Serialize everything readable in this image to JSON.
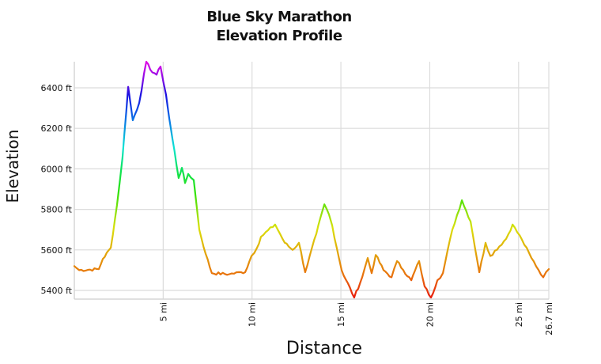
{
  "chart": {
    "title_line1": "Blue Sky Marathon",
    "title_line2": "Elevation Profile",
    "xlabel": "Distance",
    "ylabel": "Elevation",
    "y_ticks": [
      "6400 ft",
      "6200 ft",
      "6000 ft",
      "5800 ft",
      "5600 ft",
      "5400 ft"
    ],
    "x_ticks": [
      "5 mi",
      "10 mi",
      "15 mi",
      "20 mi",
      "25 mi",
      "26.7 mi"
    ]
  },
  "chart_data": {
    "type": "line",
    "title": "Blue Sky Marathon Elevation Profile",
    "xlabel": "Distance",
    "ylabel": "Elevation",
    "x_unit": "mi",
    "y_unit": "ft",
    "xlim": [
      0,
      26.7
    ],
    "ylim": [
      5355,
      6530
    ],
    "x_tick_values": [
      5,
      10,
      15,
      20,
      25,
      26.7
    ],
    "x_tick_labels": [
      "5 mi",
      "10 mi",
      "15 mi",
      "20 mi",
      "25 mi",
      "26.7 mi"
    ],
    "y_tick_values": [
      5400,
      5600,
      5800,
      6000,
      6200,
      6400
    ],
    "y_tick_labels": [
      "5400 ft",
      "5600 ft",
      "5800 ft",
      "6000 ft",
      "6200 ft",
      "6400 ft"
    ],
    "grid": true,
    "legend": "none",
    "color_scale": "elevation-gradient: red (low) → orange → yellow → green → cyan → blue → magenta (high)",
    "series": [
      {
        "name": "Elevation",
        "x": [
          0,
          0.27,
          1.38,
          1.6,
          2.05,
          2.4,
          2.71,
          3.03,
          3.29,
          3.65,
          4.05,
          4.27,
          4.63,
          4.85,
          5.16,
          5.34,
          5.52,
          5.87,
          6.05,
          6.23,
          6.41,
          6.72,
          7.03,
          7.39,
          7.74,
          8.72,
          9.39,
          9.61,
          9.97,
          10.28,
          10.5,
          11.3,
          11.84,
          12.28,
          12.64,
          12.99,
          13.62,
          14.07,
          14.33,
          14.51,
          15.04,
          15.75,
          16.2,
          16.51,
          16.73,
          16.96,
          17.4,
          17.85,
          18.16,
          18.51,
          18.96,
          19.4,
          19.71,
          20.07,
          20.43,
          20.74,
          21.27,
          21.81,
          22.3,
          22.79,
          23.14,
          23.41,
          24.3,
          24.66,
          25.19,
          25.72,
          26.39,
          26.7
        ],
        "y": [
          5520,
          5500,
          5505,
          5555,
          5610,
          5820,
          6055,
          6405,
          6240,
          6325,
          6530,
          6490,
          6465,
          6505,
          6365,
          6250,
          6150,
          5955,
          6005,
          5930,
          5975,
          5945,
          5700,
          5580,
          5485,
          5480,
          5490,
          5490,
          5570,
          5610,
          5665,
          5725,
          5635,
          5600,
          5635,
          5490,
          5680,
          5825,
          5775,
          5720,
          5500,
          5365,
          5465,
          5560,
          5485,
          5575,
          5500,
          5465,
          5545,
          5500,
          5450,
          5545,
          5420,
          5365,
          5450,
          5485,
          5700,
          5845,
          5740,
          5490,
          5635,
          5570,
          5655,
          5725,
          5650,
          5560,
          5465,
          5505
        ]
      }
    ],
    "annotations": []
  }
}
